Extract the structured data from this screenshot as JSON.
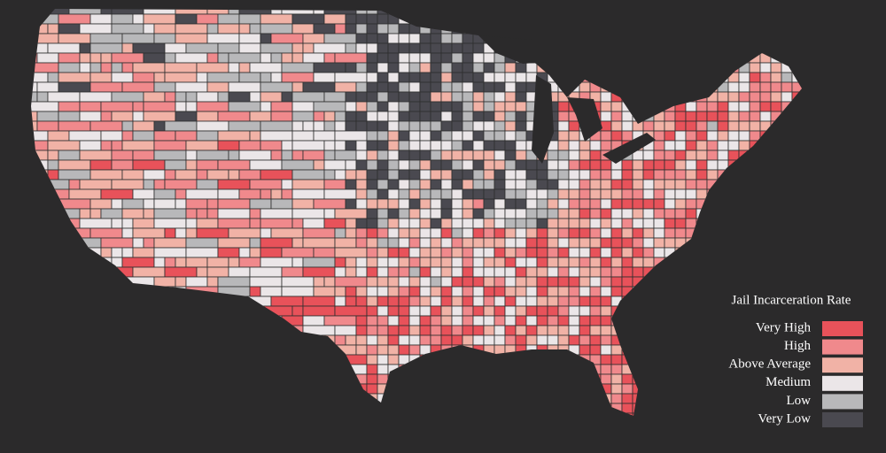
{
  "legend": {
    "title": "Jail Incarceration Rate",
    "items": [
      {
        "label": "Very High",
        "color": "#e8525a"
      },
      {
        "label": "High",
        "color": "#f0898c"
      },
      {
        "label": "Above Average",
        "color": "#f1b2a6"
      },
      {
        "label": "Medium",
        "color": "#ebe6e8"
      },
      {
        "label": "Low",
        "color": "#b8b8ba"
      },
      {
        "label": "Very Low",
        "color": "#4a4950"
      }
    ]
  }
}
